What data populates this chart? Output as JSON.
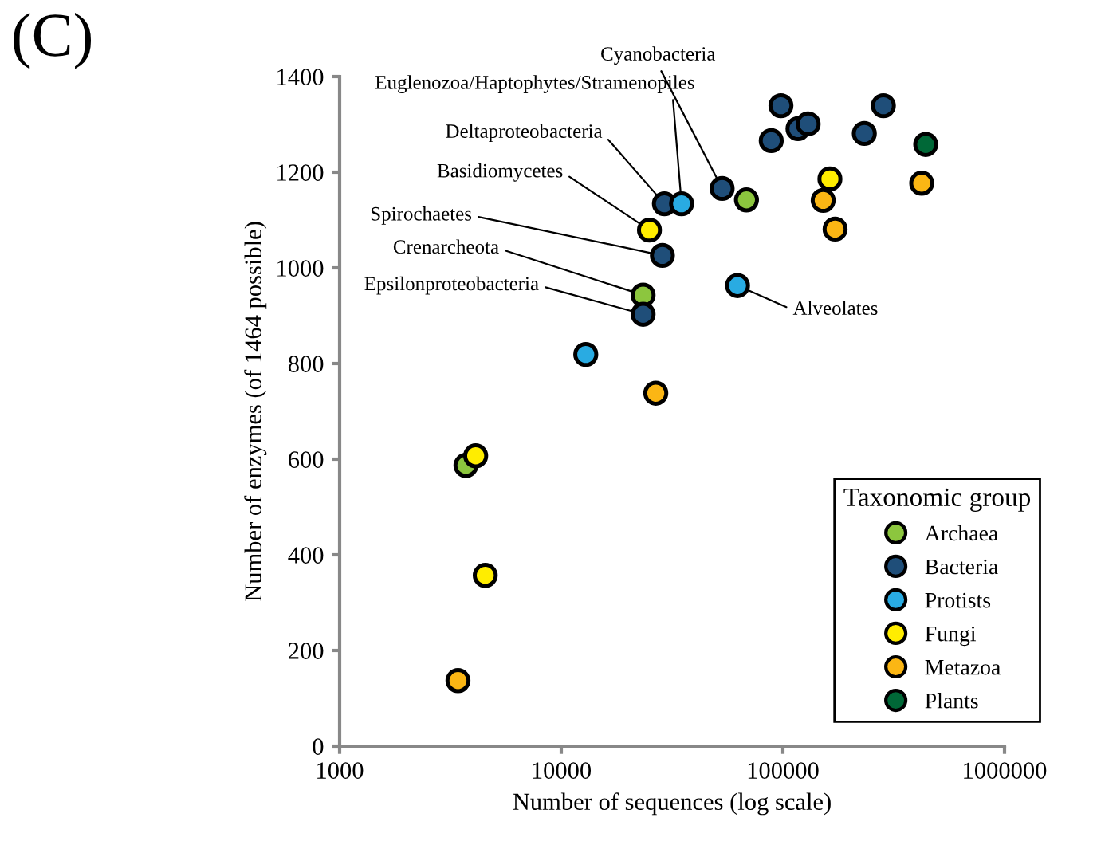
{
  "chart_data": {
    "type": "scatter",
    "xlabel": "Number of sequences (log scale)",
    "ylabel": "Number of enzymes (of 1464 possible)",
    "legend_title": "Taxonomic group",
    "legend": "bottom right",
    "log": "x",
    "grid": false,
    "marker": "circle",
    "xlim": [
      1000,
      1000000
    ],
    "xticks": [
      1000,
      10000,
      100000,
      1000000
    ],
    "ylim": [
      0,
      1400
    ],
    "yticks": [
      0,
      200,
      400,
      600,
      800,
      1000,
      1200,
      1400
    ],
    "series": [
      {
        "name": "Archaea",
        "color": "#8cc63e",
        "x": [
          3715,
          68500,
          23400
        ],
        "values": [
          587,
          1142,
          943
        ]
      },
      {
        "name": "Bacteria",
        "color": "#1f4e79",
        "x": [
          29200,
          53200,
          28600,
          23400,
          98000,
          88600,
          117000,
          130000,
          233000,
          284000
        ],
        "values": [
          1134,
          1166,
          1026,
          903,
          1339,
          1266,
          1291,
          1301,
          1281,
          1339
        ]
      },
      {
        "name": "Protists",
        "color": "#29abe2",
        "x": [
          34900,
          12900,
          62400
        ],
        "values": [
          1134,
          819,
          963
        ]
      },
      {
        "name": "Fungi",
        "color": "#ffed00",
        "x": [
          4110,
          4540,
          25000,
          163000
        ],
        "values": [
          607,
          357,
          1079,
          1186
        ]
      },
      {
        "name": "Metazoa",
        "color": "#fbb614",
        "x": [
          3420,
          26700,
          152000,
          172000,
          423000
        ],
        "values": [
          137,
          738,
          1141,
          1081,
          1177
        ]
      },
      {
        "name": "Plants",
        "color": "#006837",
        "x": [
          441000
        ],
        "values": [
          1258
        ]
      }
    ],
    "annotations": [
      "(C)",
      {
        "text": "Cyanobacteria",
        "x": 53200,
        "y": 1166
      },
      {
        "text": "Euglenozoa/Haptophytes/Stramenopiles",
        "x": 34900,
        "y": 1134
      },
      {
        "text": "Deltaproteobacteria",
        "x": 29200,
        "y": 1134
      },
      {
        "text": "Basidiomycetes",
        "x": 25000,
        "y": 1079
      },
      {
        "text": "Spirochaetes",
        "x": 28600,
        "y": 1026
      },
      {
        "text": "Crenarcheota",
        "x": 23400,
        "y": 943
      },
      {
        "text": "Epsilonproteobacteria",
        "x": 23400,
        "y": 903
      },
      {
        "text": "Alveolates",
        "x": 62400,
        "y": 963
      }
    ]
  }
}
